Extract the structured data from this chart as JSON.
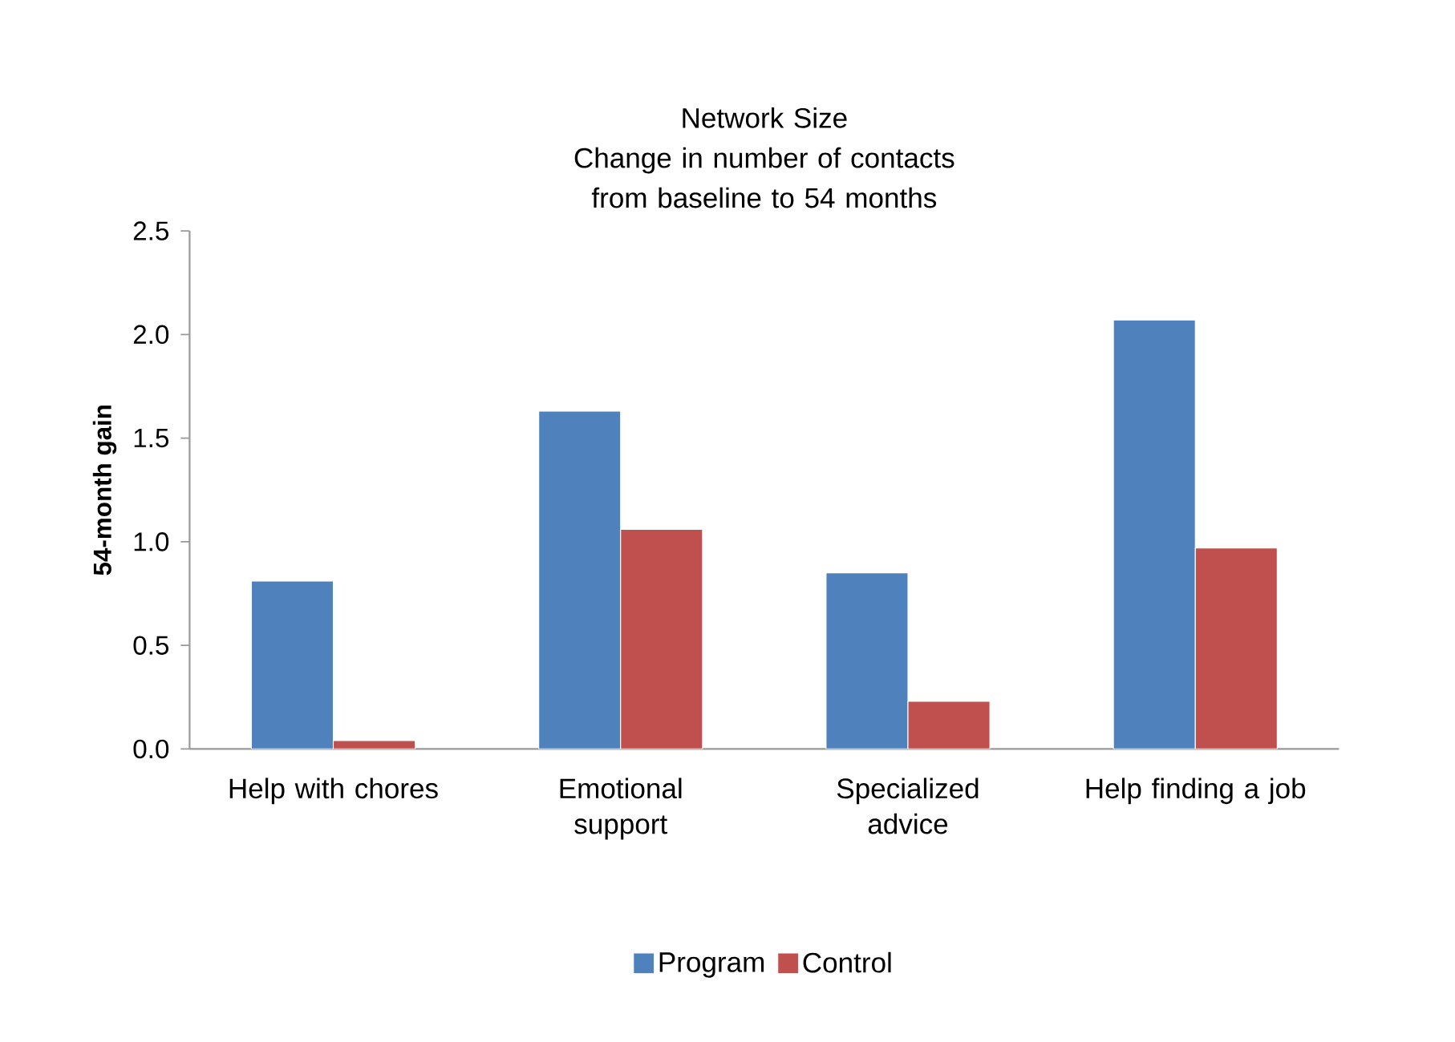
{
  "chart_data": {
    "type": "bar",
    "title": "Network Size",
    "subtitle": "Change in number of contacts from baseline to 54 months",
    "ylabel": "54-month gain",
    "categories": [
      "Help with chores",
      "Emotional support",
      "Specialized advice",
      "Help finding a job"
    ],
    "series": [
      {
        "name": "Program",
        "color": "#4f81bd",
        "values": [
          0.81,
          1.63,
          0.85,
          2.07
        ]
      },
      {
        "name": "Control",
        "color": "#c0504d",
        "values": [
          0.04,
          1.06,
          0.23,
          0.97
        ]
      }
    ],
    "ylim": [
      0,
      2.5
    ],
    "yticks": [
      {
        "value": 0,
        "label": "0.0"
      },
      {
        "value": 0.5,
        "label": "0.5"
      },
      {
        "value": 1,
        "label": "1.0"
      },
      {
        "value": 1.5,
        "label": "1.5"
      },
      {
        "value": 2,
        "label": "2.0"
      },
      {
        "value": 2.5,
        "label": "2.5"
      }
    ],
    "grid": false,
    "legend": "bottom"
  }
}
